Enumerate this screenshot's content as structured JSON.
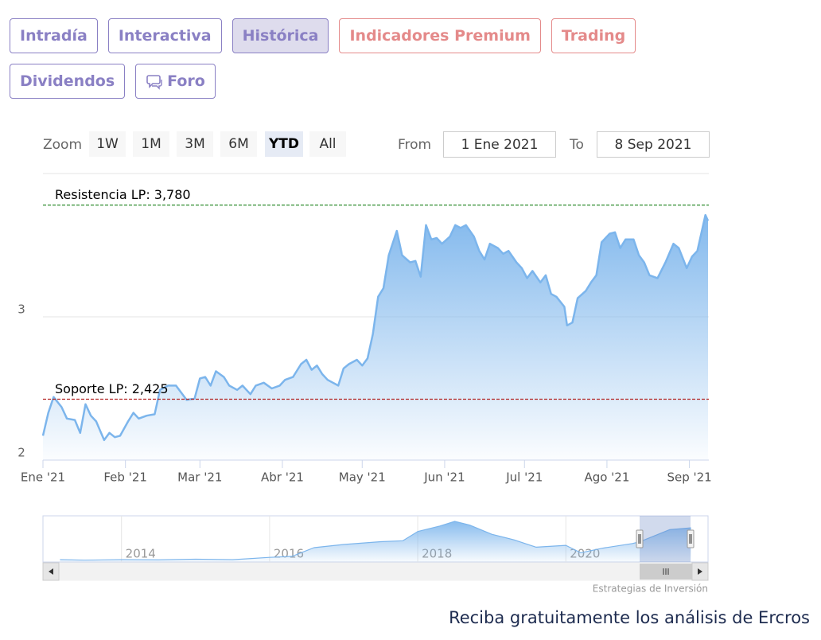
{
  "tabs": {
    "items": [
      {
        "label": "Intradía",
        "color": "#8a80c4"
      },
      {
        "label": "Interactiva",
        "color": "#8a80c4"
      },
      {
        "label": "Histórica",
        "color": "#8a80c4"
      },
      {
        "label": "Indicadores Premium",
        "color": "#e48a8a"
      },
      {
        "label": "Trading",
        "color": "#e48a8a"
      },
      {
        "label": "Dividendos",
        "color": "#8a80c4"
      },
      {
        "label": "Foro",
        "color": "#8a80c4"
      }
    ],
    "active": 2
  },
  "range_selector": {
    "label": "Zoom",
    "buttons": [
      "1W",
      "1M",
      "3M",
      "6M",
      "YTD",
      "All"
    ],
    "active": 4,
    "from_label": "From",
    "from": "1 Ene 2021",
    "to_label": "To",
    "to": "8 Sep 2021"
  },
  "chart_data": [
    {
      "type": "area",
      "color": "#7cb5ec",
      "x": [
        0,
        2,
        4,
        7,
        9,
        12,
        14,
        16,
        18,
        20,
        23,
        25,
        27,
        29,
        32,
        34,
        36,
        39,
        42,
        44,
        47,
        50,
        54,
        57,
        59,
        61,
        63,
        65,
        68,
        70,
        73,
        75,
        78,
        80,
        83,
        86,
        89,
        91,
        94,
        97,
        99,
        101,
        103,
        105,
        107,
        111,
        113,
        115,
        118,
        120,
        122,
        124,
        126,
        128,
        130,
        133,
        135,
        138,
        140,
        142,
        144,
        146,
        148,
        150,
        153,
        155,
        157,
        159,
        162,
        164,
        166,
        168,
        171,
        173,
        175,
        178,
        180,
        182,
        184,
        187,
        189,
        191,
        193,
        196,
        197,
        199,
        201,
        204,
        206,
        208,
        210,
        213,
        215,
        217,
        219,
        222,
        224,
        226,
        228,
        231,
        234,
        237,
        239,
        242,
        244,
        246,
        249,
        250
      ],
      "values": [
        2.17,
        2.33,
        2.44,
        2.37,
        2.29,
        2.28,
        2.19,
        2.39,
        2.31,
        2.27,
        2.14,
        2.19,
        2.16,
        2.17,
        2.27,
        2.33,
        2.29,
        2.31,
        2.32,
        2.49,
        2.52,
        2.52,
        2.42,
        2.43,
        2.57,
        2.58,
        2.52,
        2.62,
        2.58,
        2.52,
        2.49,
        2.52,
        2.46,
        2.52,
        2.54,
        2.5,
        2.52,
        2.56,
        2.58,
        2.67,
        2.7,
        2.63,
        2.66,
        2.6,
        2.56,
        2.52,
        2.64,
        2.67,
        2.7,
        2.66,
        2.71,
        2.88,
        3.14,
        3.2,
        3.43,
        3.6,
        3.43,
        3.38,
        3.39,
        3.28,
        3.64,
        3.54,
        3.55,
        3.51,
        3.56,
        3.64,
        3.62,
        3.64,
        3.56,
        3.46,
        3.4,
        3.51,
        3.48,
        3.44,
        3.46,
        3.38,
        3.34,
        3.27,
        3.32,
        3.24,
        3.29,
        3.16,
        3.14,
        3.07,
        2.94,
        2.96,
        3.13,
        3.18,
        3.24,
        3.29,
        3.52,
        3.58,
        3.59,
        3.48,
        3.54,
        3.54,
        3.43,
        3.38,
        3.29,
        3.27,
        3.38,
        3.51,
        3.48,
        3.34,
        3.42,
        3.46,
        3.71,
        3.67
      ],
      "xlim": [
        0,
        250
      ],
      "xticks": [
        {
          "value": 0,
          "label": "Ene '21"
        },
        {
          "value": 31,
          "label": "Feb '21"
        },
        {
          "value": 59,
          "label": "Mar '21"
        },
        {
          "value": 90,
          "label": "Abr '21"
        },
        {
          "value": 120,
          "label": "May '21"
        },
        {
          "value": 151,
          "label": "Jun '21"
        },
        {
          "value": 181,
          "label": "Jul '21"
        },
        {
          "value": 212,
          "label": "Ago '21"
        },
        {
          "value": 243,
          "label": "Sep '21"
        }
      ],
      "ylim": [
        2,
        4
      ],
      "yticks": [
        2,
        3
      ],
      "grid": true,
      "plot_lines": [
        {
          "label": "Resistencia LP: 3,780",
          "value": 3.78,
          "color": "#2e8b2e"
        },
        {
          "label": "Soporte LP: 2,425",
          "value": 2.425,
          "color": "#b22222"
        }
      ]
    },
    {
      "type": "area",
      "color": "#7cb5ec",
      "x": [
        2013.17,
        2013.5,
        2014,
        2014.5,
        2015,
        2015.5,
        2016,
        2016.3,
        2016.6,
        2017,
        2017.5,
        2017.8,
        2018,
        2018.3,
        2018.5,
        2018.7,
        2019,
        2019.3,
        2019.6,
        2020,
        2020.2,
        2020.5,
        2020.9,
        2021,
        2021.4,
        2021.69
      ],
      "values": [
        0.25,
        0.2,
        0.25,
        0.22,
        0.3,
        0.25,
        0.5,
        0.6,
        1.55,
        1.9,
        2.2,
        2.3,
        3.3,
        3.9,
        4.4,
        4.0,
        3.0,
        2.4,
        1.6,
        1.8,
        1.0,
        1.5,
        2.0,
        2.2,
        3.5,
        3.7
      ],
      "xlim": [
        2012.94,
        2021.92
      ],
      "xticks": [
        2014,
        2016,
        2018,
        2020
      ],
      "ylim": [
        0,
        5
      ],
      "grid": true
    }
  ],
  "credit": "Estrategias de Inversión",
  "footer": "Reciba gratuitamente los análisis de Ercros"
}
